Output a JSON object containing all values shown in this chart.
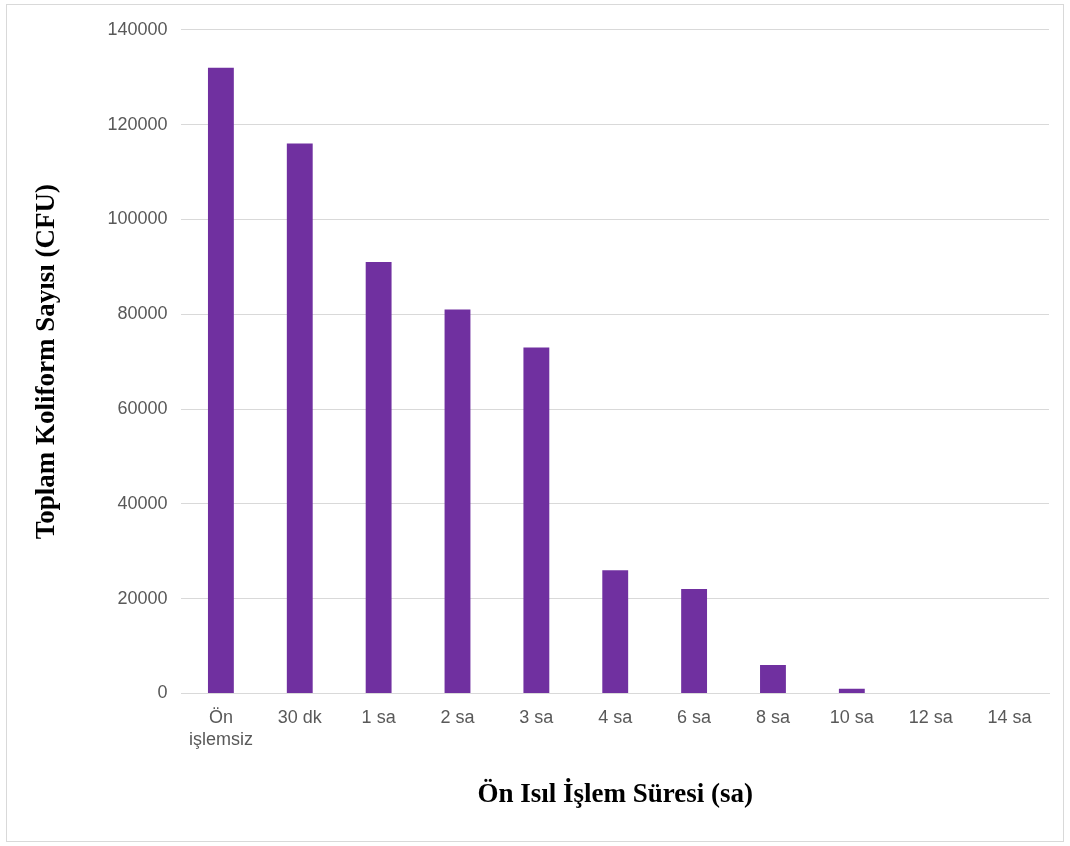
{
  "chart_data": {
    "type": "bar",
    "xlabel": "Ön Isıl İşlem Süresi (sa)",
    "ylabel": "Toplam Koliform Sayısı (CFU)",
    "categories": [
      "Ön işlemsiz",
      "30 dk",
      "1 sa",
      "2 sa",
      "3 sa",
      "4 sa",
      "6 sa",
      "8 sa",
      "10 sa",
      "12 sa",
      "14 sa"
    ],
    "values": [
      132000,
      116000,
      91000,
      81000,
      73000,
      26000,
      22000,
      6000,
      1000,
      0,
      0
    ],
    "color": "#7030a0",
    "ylim": [
      0,
      140000
    ],
    "yticks": [
      0,
      20000,
      40000,
      60000,
      80000,
      100000,
      120000,
      140000
    ],
    "grid": "y",
    "legend": false
  }
}
